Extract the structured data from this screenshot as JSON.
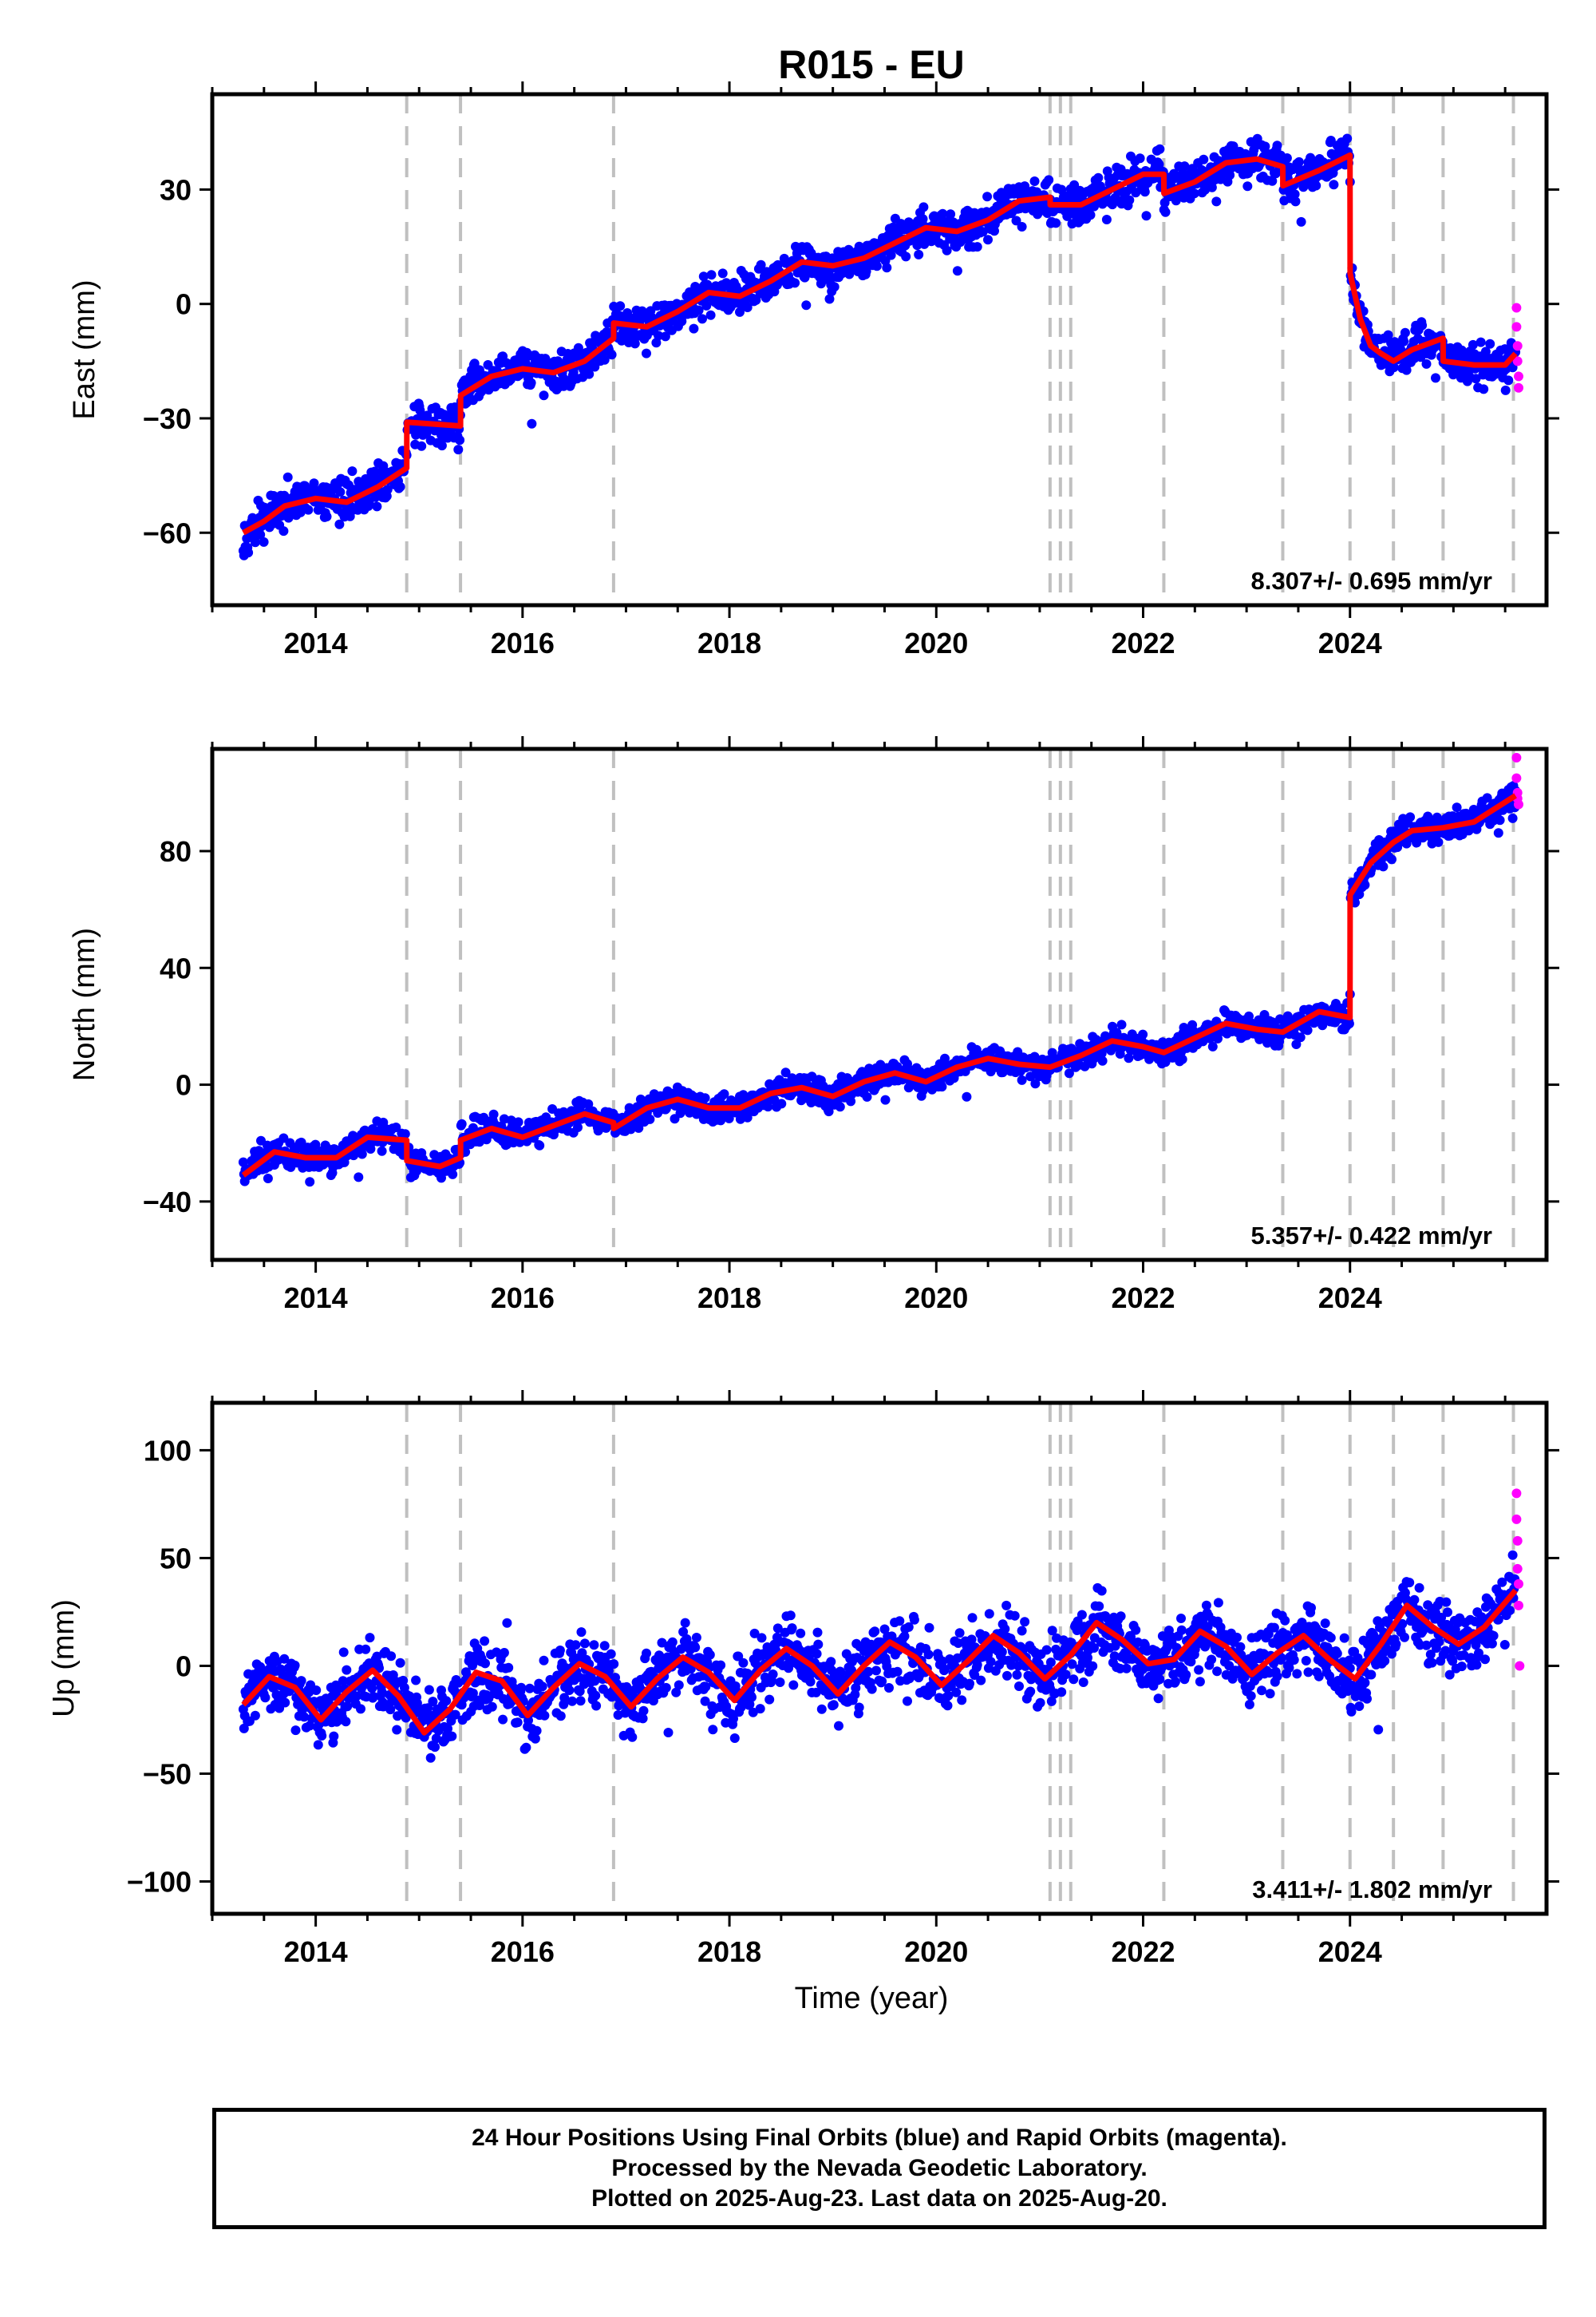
{
  "title": "R015 - EU",
  "xlabel": "Time (year)",
  "caption": [
    "24 Hour Positions Using Final Orbits (blue) and Rapid Orbits (magenta).",
    "Processed by the Nevada Geodetic Laboratory.",
    "Plotted on 2025-Aug-23. Last data on 2025-Aug-20."
  ],
  "colors": {
    "final_orbits": "#0000ff",
    "rapid_orbits": "#ff00ff",
    "model": "#ff0000",
    "event_lines": "#c0c0c0"
  },
  "chart_data": [
    {
      "type": "scatter",
      "ylabel": "East (mm)",
      "rate_label": "8.307+/- 0.695 mm/yr",
      "xlim": [
        2013.0,
        2025.9
      ],
      "ylim": [
        -79,
        55
      ],
      "xticks": [
        2014,
        2016,
        2018,
        2020,
        2022,
        2024
      ],
      "xtick_labels": [
        "2014",
        "2016",
        "2018",
        "2020",
        "2022",
        "2024"
      ],
      "yticks": [
        -60,
        -30,
        0,
        30
      ],
      "ytick_labels": [
        "−60",
        "−30",
        "0",
        "30"
      ],
      "event_lines": [
        2014.88,
        2015.4,
        2016.88,
        2021.1,
        2021.2,
        2021.3,
        2022.2,
        2023.35,
        2024.0,
        2024.42,
        2024.9,
        2025.58
      ],
      "model": {
        "x": [
          2013.3,
          2013.5,
          2013.7,
          2014.0,
          2014.3,
          2014.6,
          2014.88,
          2014.881,
          2015.4,
          2015.401,
          2015.7,
          2016.0,
          2016.3,
          2016.6,
          2016.88,
          2016.881,
          2017.2,
          2017.5,
          2017.8,
          2018.1,
          2018.4,
          2018.7,
          2019.0,
          2019.3,
          2019.6,
          2019.9,
          2020.2,
          2020.5,
          2020.8,
          2021.1,
          2021.101,
          2021.4,
          2021.7,
          2022.0,
          2022.2,
          2022.201,
          2022.5,
          2022.8,
          2023.1,
          2023.35,
          2023.351,
          2023.7,
          2024.0,
          2024.001,
          2024.1,
          2024.2,
          2024.3,
          2024.42,
          2024.6,
          2024.9,
          2024.901,
          2025.2,
          2025.5,
          2025.6
        ],
        "y": [
          -60,
          -57,
          -53,
          -51,
          -52,
          -48,
          -43,
          -31,
          -32,
          -24,
          -19,
          -17,
          -18,
          -15,
          -9,
          -5,
          -6,
          -2,
          3,
          2,
          6,
          11,
          10,
          12,
          16,
          20,
          19,
          22,
          27,
          28,
          26,
          26,
          30,
          34,
          34,
          29,
          32,
          37,
          38,
          36,
          31,
          35,
          39,
          8,
          -4,
          -11,
          -13,
          -15,
          -12,
          -9,
          -15,
          -16,
          -16,
          -13
        ]
      },
      "rapid_points": {
        "x": [
          2025.61,
          2025.61,
          2025.62,
          2025.62,
          2025.63,
          2025.63
        ],
        "y": [
          -1,
          -6,
          -11,
          -15,
          -19,
          -22
        ]
      }
    },
    {
      "type": "scatter",
      "ylabel": "North (mm)",
      "rate_label": "5.357+/- 0.422 mm/yr",
      "xlim": [
        2013.0,
        2025.9
      ],
      "ylim": [
        -60,
        115
      ],
      "xticks": [
        2014,
        2016,
        2018,
        2020,
        2022,
        2024
      ],
      "xtick_labels": [
        "2014",
        "2016",
        "2018",
        "2020",
        "2022",
        "2024"
      ],
      "yticks": [
        -40,
        0,
        40,
        80
      ],
      "ytick_labels": [
        "−40",
        "0",
        "40",
        "80"
      ],
      "event_lines": [
        2014.88,
        2015.4,
        2016.88,
        2021.1,
        2021.2,
        2021.3,
        2022.2,
        2023.35,
        2024.0,
        2024.42,
        2024.9,
        2025.58
      ],
      "model": {
        "x": [
          2013.3,
          2013.6,
          2013.9,
          2014.2,
          2014.5,
          2014.88,
          2014.881,
          2015.2,
          2015.4,
          2015.401,
          2015.7,
          2016.0,
          2016.3,
          2016.6,
          2016.88,
          2016.881,
          2017.2,
          2017.5,
          2017.8,
          2018.1,
          2018.4,
          2018.7,
          2019.0,
          2019.3,
          2019.6,
          2019.9,
          2020.2,
          2020.5,
          2020.8,
          2021.1,
          2021.4,
          2021.7,
          2022.0,
          2022.2,
          2022.5,
          2022.8,
          2023.1,
          2023.35,
          2023.7,
          2024.0,
          2024.001,
          2024.2,
          2024.42,
          2024.6,
          2024.9,
          2025.2,
          2025.6
        ],
        "y": [
          -31,
          -23,
          -25,
          -25,
          -18,
          -19,
          -26,
          -28,
          -25,
          -19,
          -15,
          -18,
          -14,
          -10,
          -13,
          -15,
          -8,
          -5,
          -8,
          -8,
          -3,
          -1,
          -4,
          1,
          4,
          1,
          6,
          9,
          7,
          6,
          10,
          15,
          13,
          11,
          16,
          21,
          19,
          18,
          25,
          23,
          65,
          76,
          83,
          87,
          88,
          90,
          99
        ]
      },
      "rapid_points": {
        "x": [
          2025.61,
          2025.61,
          2025.62,
          2025.62,
          2025.63
        ],
        "y": [
          112,
          105,
          100,
          98,
          96
        ]
      }
    },
    {
      "type": "scatter",
      "ylabel": "Up (mm)",
      "rate_label": "3.411+/- 1.802 mm/yr",
      "xlim": [
        2013.0,
        2025.9
      ],
      "ylim": [
        -115,
        122
      ],
      "xticks": [
        2014,
        2016,
        2018,
        2020,
        2022,
        2024
      ],
      "xtick_labels": [
        "2014",
        "2016",
        "2018",
        "2020",
        "2022",
        "2024"
      ],
      "yticks": [
        -100,
        -50,
        0,
        50,
        100
      ],
      "ytick_labels": [
        "−100",
        "−50",
        "0",
        "50",
        "100"
      ],
      "event_lines": [
        2014.88,
        2015.4,
        2016.88,
        2021.1,
        2021.2,
        2021.3,
        2022.2,
        2023.35,
        2024.0,
        2024.42,
        2024.9,
        2025.58
      ],
      "model": {
        "x": [
          2013.3,
          2013.55,
          2013.8,
          2014.05,
          2014.3,
          2014.55,
          2014.8,
          2015.05,
          2015.3,
          2015.55,
          2015.8,
          2016.05,
          2016.3,
          2016.55,
          2016.8,
          2017.05,
          2017.3,
          2017.55,
          2017.8,
          2018.05,
          2018.3,
          2018.55,
          2018.8,
          2019.05,
          2019.3,
          2019.55,
          2019.8,
          2020.05,
          2020.3,
          2020.55,
          2020.8,
          2021.05,
          2021.3,
          2021.55,
          2021.8,
          2022.05,
          2022.3,
          2022.55,
          2022.8,
          2023.05,
          2023.3,
          2023.55,
          2023.8,
          2024.05,
          2024.3,
          2024.55,
          2024.8,
          2025.05,
          2025.3,
          2025.6
        ],
        "y": [
          -18,
          -5,
          -10,
          -25,
          -12,
          -2,
          -14,
          -31,
          -20,
          -3,
          -7,
          -23,
          -10,
          1,
          -5,
          -19,
          -6,
          4,
          -3,
          -16,
          -2,
          8,
          0,
          -13,
          0,
          11,
          4,
          -9,
          2,
          14,
          6,
          -6,
          5,
          20,
          12,
          1,
          3,
          16,
          9,
          -4,
          6,
          14,
          3,
          -6,
          10,
          28,
          18,
          10,
          18,
          35
        ]
      },
      "rapid_points": {
        "x": [
          2025.61,
          2025.61,
          2025.62,
          2025.62,
          2025.63,
          2025.63,
          2025.64
        ],
        "y": [
          80,
          68,
          58,
          45,
          38,
          28,
          0
        ]
      }
    }
  ]
}
